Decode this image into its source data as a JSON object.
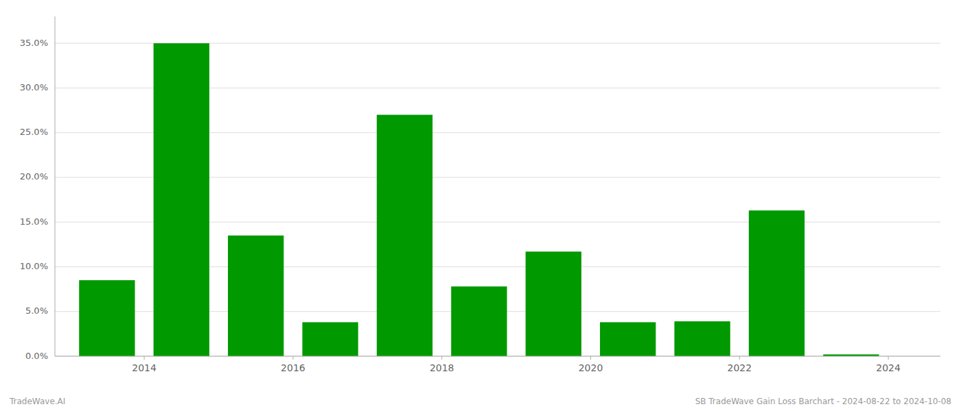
{
  "chart_data": {
    "type": "bar",
    "x": [
      2013.5,
      2014.5,
      2015.5,
      2016.5,
      2017.5,
      2018.5,
      2019.5,
      2020.5,
      2021.5,
      2022.5,
      2023.5
    ],
    "values": [
      0.085,
      0.35,
      0.135,
      0.038,
      0.27,
      0.078,
      0.117,
      0.038,
      0.039,
      0.163,
      0.002
    ],
    "color": "#009900",
    "xlim": [
      2012.8,
      2024.7
    ],
    "xticks": [
      2014,
      2016,
      2018,
      2020,
      2022,
      2024
    ],
    "ylim": [
      0,
      0.38
    ],
    "yticks": [
      {
        "value": 0.0,
        "label": "0.0%"
      },
      {
        "value": 0.05,
        "label": "5.0%"
      },
      {
        "value": 0.1,
        "label": "10.0%"
      },
      {
        "value": 0.15,
        "label": "15.0%"
      },
      {
        "value": 0.2,
        "label": "20.0%"
      },
      {
        "value": 0.25,
        "label": "25.0%"
      },
      {
        "value": 0.3,
        "label": "30.0%"
      },
      {
        "value": 0.35,
        "label": "35.0%"
      }
    ],
    "grid": true,
    "annotations": [
      "TradeWave.AI",
      "SB TradeWave Gain Loss Barchart - 2024-08-22 to 2024-10-08"
    ]
  }
}
